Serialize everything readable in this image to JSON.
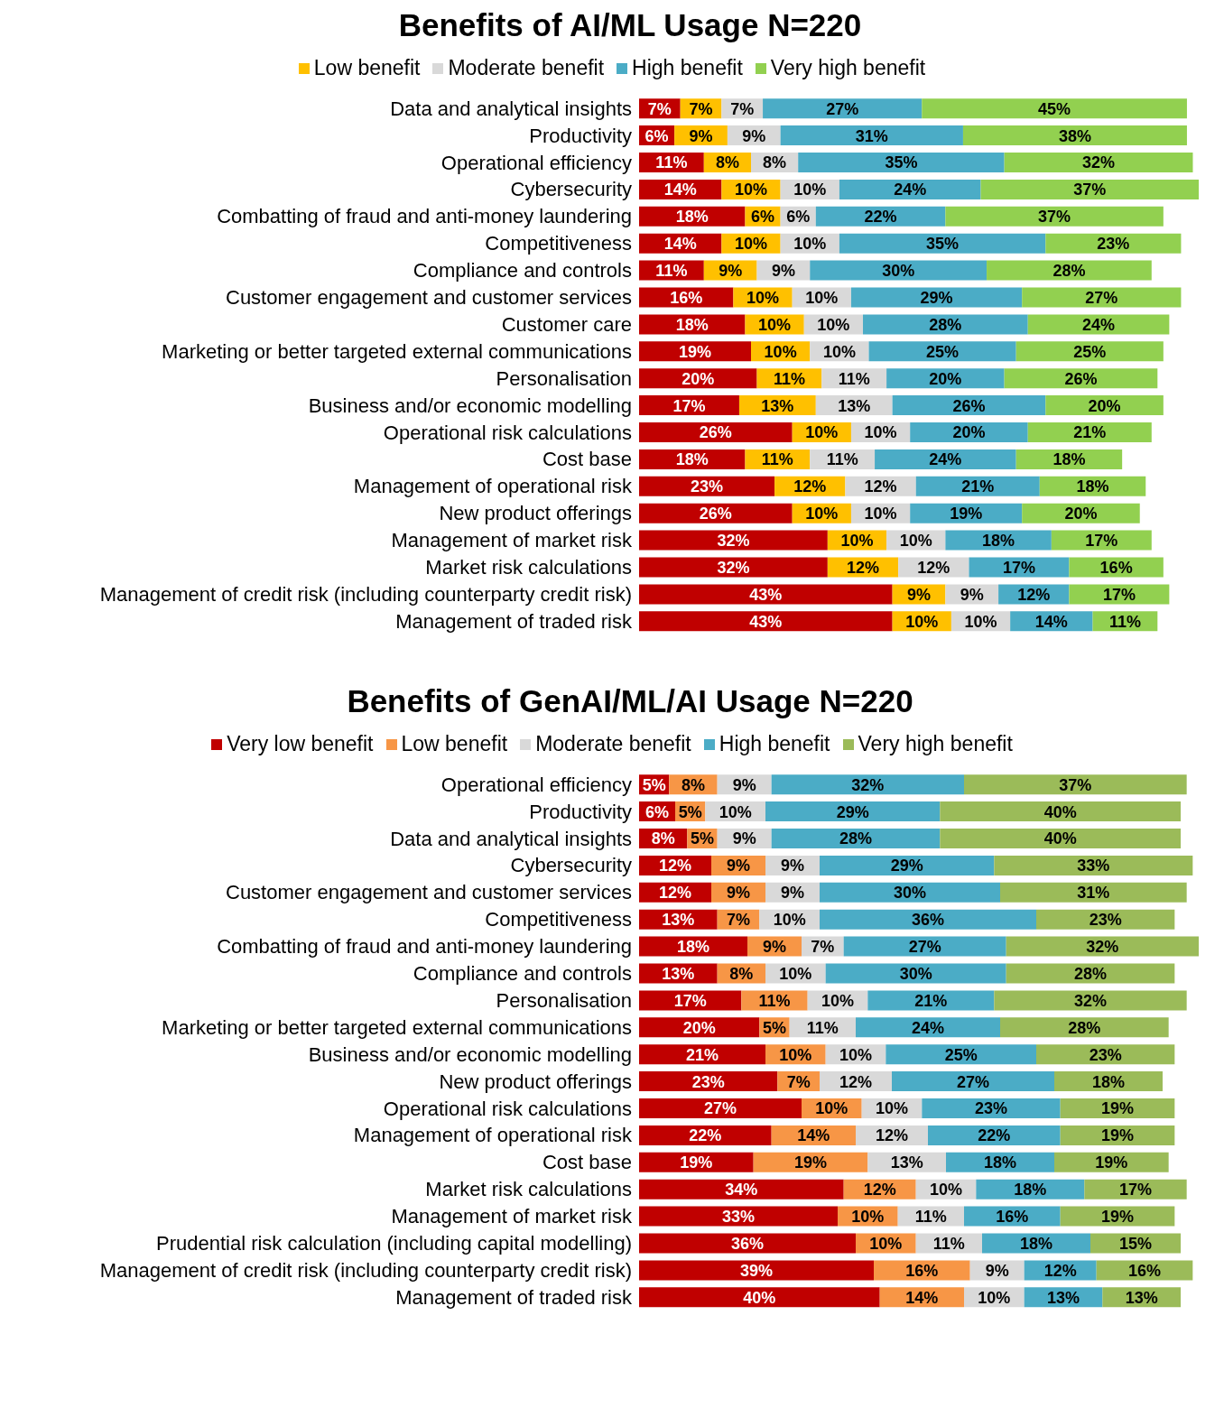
{
  "chart_data": [
    {
      "type": "bar",
      "title": "Benefits of AI/ML Usage N=220",
      "orientation": "horizontal",
      "stacked": true,
      "legend": "top",
      "tick_labels": "y",
      "categories": [
        "Data and analytical insights",
        "Productivity",
        "Operational efficiency",
        "Cybersecurity",
        "Combatting of fraud and anti-money laundering",
        "Competitiveness",
        "Compliance and controls",
        "Customer engagement and customer services",
        "Customer care",
        "Marketing or better targeted external communications",
        "Personalisation",
        "Business and/or economic modelling",
        "Operational risk calculations",
        "Cost base",
        "Management of operational risk",
        "New product offerings",
        "Management of market risk",
        "Market risk calculations",
        "Management of credit risk (including counterparty credit risk)",
        "Management of traded risk"
      ],
      "series": [
        {
          "color": "#c00000",
          "values": [
            7,
            6,
            11,
            14,
            18,
            14,
            11,
            16,
            18,
            19,
            20,
            17,
            26,
            18,
            23,
            26,
            32,
            32,
            43,
            43
          ],
          "value_labels": [
            "7%",
            "6%",
            "11%",
            "14%",
            "18%",
            "14%",
            "11%",
            "16%",
            "18%",
            "19%",
            "20%",
            "17%",
            "26%",
            "18%",
            "23%",
            "26%",
            "32%",
            "32%",
            "43%",
            "43%"
          ]
        },
        {
          "name": "Low benefit",
          "color": "#ffc000",
          "values": [
            7,
            9,
            8,
            10,
            6,
            10,
            9,
            10,
            10,
            10,
            11,
            13,
            10,
            11,
            12,
            10,
            10,
            12,
            9,
            10
          ],
          "value_labels": [
            "7%",
            "9%",
            "8%",
            "10%",
            "6%",
            "10%",
            "9%",
            "10%",
            "10%",
            "10%",
            "11%",
            "13%",
            "10%",
            "11%",
            "12%",
            "10%",
            "10%",
            "12%",
            "9%",
            "10%"
          ]
        },
        {
          "name": "Moderate benefit",
          "color": "#d9d9d9",
          "values": [
            7,
            9,
            8,
            10,
            6,
            10,
            9,
            10,
            10,
            10,
            11,
            13,
            10,
            11,
            12,
            10,
            10,
            12,
            9,
            10
          ],
          "value_labels": [
            "7%",
            "9%",
            "8%",
            "10%",
            "6%",
            "10%",
            "9%",
            "10%",
            "10%",
            "10%",
            "11%",
            "13%",
            "10%",
            "11%",
            "12%",
            "10%",
            "10%",
            "12%",
            "9%",
            "10%"
          ]
        },
        {
          "name": "High benefit",
          "color": "#4bacc6",
          "values": [
            27,
            31,
            35,
            24,
            22,
            35,
            30,
            29,
            28,
            25,
            20,
            26,
            20,
            24,
            21,
            19,
            18,
            17,
            12,
            14
          ],
          "value_labels": [
            "27%",
            "31%",
            "35%",
            "24%",
            "22%",
            "35%",
            "30%",
            "29%",
            "28%",
            "25%",
            "20%",
            "26%",
            "20%",
            "24%",
            "21%",
            "19%",
            "18%",
            "17%",
            "12%",
            "14%"
          ]
        },
        {
          "name": "Very high benefit",
          "color": "#92d050",
          "values": [
            45,
            38,
            32,
            37,
            37,
            23,
            28,
            27,
            24,
            25,
            26,
            20,
            21,
            18,
            18,
            20,
            17,
            16,
            17,
            11
          ],
          "value_labels": [
            "45%",
            "38%",
            "32%",
            "37%",
            "37%",
            "23%",
            "28%",
            "27%",
            "24%",
            "25%",
            "26%",
            "20%",
            "21%",
            "18%",
            "18%",
            "20%",
            "17%",
            "16%",
            "17%",
            "11%"
          ]
        }
      ]
    },
    {
      "type": "bar",
      "title": "Benefits of GenAI/ML/AI Usage N=220",
      "orientation": "horizontal",
      "stacked": true,
      "legend": "top",
      "tick_labels": "y",
      "categories": [
        "Operational efficiency",
        "Productivity",
        "Data and analytical insights",
        "Cybersecurity",
        "Customer engagement and customer services",
        "Competitiveness",
        "Combatting of fraud and anti-money laundering",
        "Compliance and controls",
        "Personalisation",
        "Marketing or better targeted external communications",
        "Business and/or economic modelling",
        "New product offerings",
        "Operational risk calculations",
        "Management of operational risk",
        "Cost base",
        "Market risk calculations",
        "Management of market risk",
        "Prudential risk calculation (including capital modelling)",
        "Management of credit risk (including counterparty credit risk)",
        "Management of traded risk"
      ],
      "series": [
        {
          "name": "Very low benefit",
          "color": "#c00000",
          "values": [
            5,
            6,
            8,
            12,
            12,
            13,
            18,
            13,
            17,
            20,
            21,
            23,
            27,
            22,
            19,
            34,
            33,
            36,
            39,
            40
          ],
          "value_labels": [
            "5%",
            "6%",
            "8%",
            "12%",
            "12%",
            "13%",
            "18%",
            "13%",
            "17%",
            "20%",
            "21%",
            "23%",
            "27%",
            "22%",
            "19%",
            "34%",
            "33%",
            "36%",
            "39%",
            "40%"
          ]
        },
        {
          "name": "Low benefit",
          "color": "#f79646",
          "values": [
            8,
            5,
            5,
            9,
            9,
            7,
            9,
            8,
            11,
            5,
            10,
            7,
            10,
            14,
            19,
            12,
            10,
            10,
            16,
            14
          ],
          "value_labels": [
            "8%",
            "5%",
            "5%",
            "9%",
            "9%",
            "7%",
            "9%",
            "8%",
            "11%",
            "5%",
            "10%",
            "7%",
            "10%",
            "14%",
            "19%",
            "12%",
            "10%",
            "10%",
            "16%",
            "14%"
          ]
        },
        {
          "name": "Moderate benefit",
          "color": "#d9d9d9",
          "values": [
            9,
            10,
            9,
            9,
            9,
            10,
            7,
            10,
            10,
            11,
            10,
            12,
            10,
            12,
            13,
            10,
            11,
            11,
            9,
            10
          ],
          "value_labels": [
            "9%",
            "10%",
            "9%",
            "9%",
            "9%",
            "10%",
            "7%",
            "10%",
            "10%",
            "11%",
            "10%",
            "12%",
            "10%",
            "12%",
            "13%",
            "10%",
            "11%",
            "11%",
            "9%",
            "10%"
          ]
        },
        {
          "name": "High benefit",
          "color": "#4bacc6",
          "values": [
            32,
            29,
            28,
            29,
            30,
            36,
            27,
            30,
            21,
            24,
            25,
            27,
            23,
            22,
            18,
            18,
            16,
            18,
            12,
            13
          ],
          "value_labels": [
            "32%",
            "29%",
            "28%",
            "29%",
            "30%",
            "36%",
            "27%",
            "30%",
            "21%",
            "24%",
            "25%",
            "27%",
            "23%",
            "22%",
            "18%",
            "18%",
            "16%",
            "18%",
            "12%",
            "13%"
          ]
        },
        {
          "name": "Very high benefit",
          "color": "#9bbb59",
          "values": [
            37,
            40,
            40,
            33,
            31,
            23,
            32,
            28,
            32,
            28,
            23,
            18,
            19,
            19,
            19,
            17,
            19,
            15,
            16,
            13
          ],
          "value_labels": [
            "37%",
            "40%",
            "40%",
            "33%",
            "31%",
            "23%",
            "32%",
            "28%",
            "32%",
            "28%",
            "23%",
            "18%",
            "19%",
            "19%",
            "19%",
            "17%",
            "19%",
            "15%",
            "16%",
            "13%"
          ]
        }
      ]
    }
  ]
}
